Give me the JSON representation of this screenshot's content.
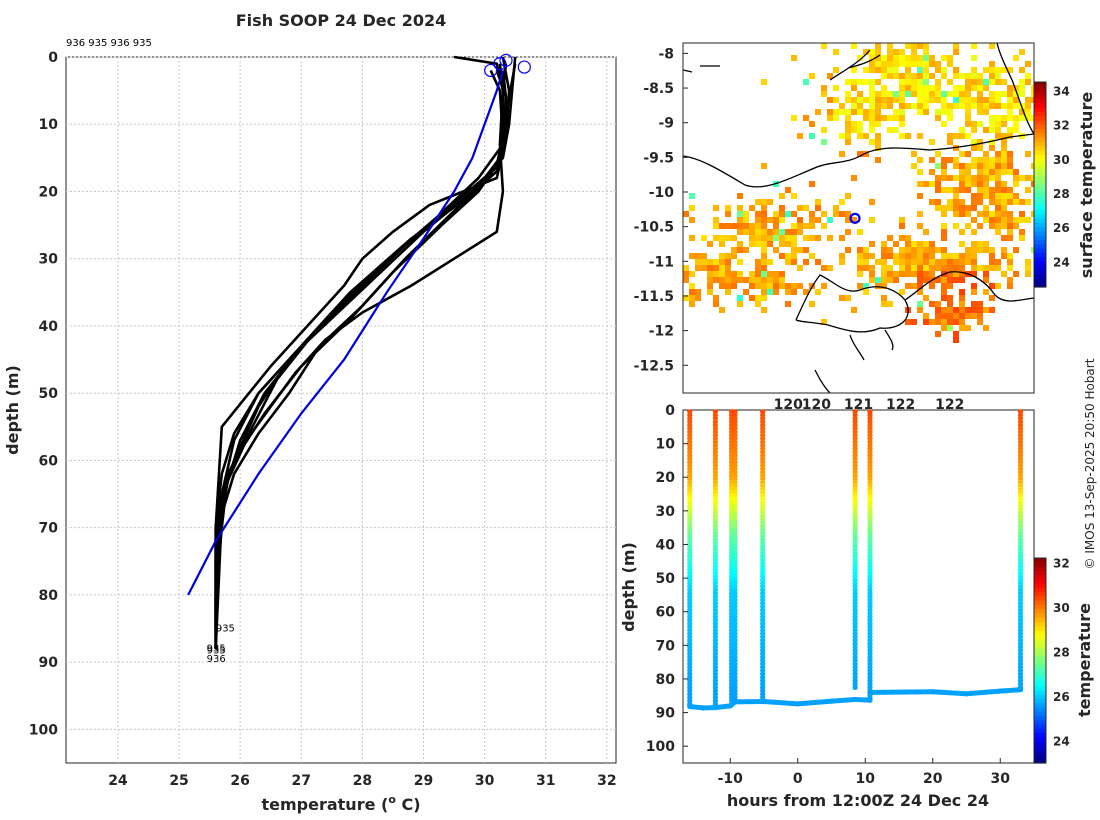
{
  "title": "Fish SOOP 24 Dec 2024",
  "credit": "© IMOS 13-Sep-2025 20:50 Hobart",
  "colors": {
    "profile": "#000000",
    "climatology": "#0000dd",
    "marker": "#0000ff",
    "coast": "#000000",
    "grid": "#c8c8c8"
  },
  "chart_data": [
    {
      "type": "line",
      "name": "profiles",
      "xlabel": "temperature (",
      "xlabel_sup": "o",
      "xlabel_end": " C)",
      "ylabel": "depth (m)",
      "xlim": [
        23.15,
        32.15
      ],
      "ylim": [
        105,
        0
      ],
      "xticks": [
        24,
        25,
        26,
        27,
        28,
        29,
        30,
        31,
        32
      ],
      "yticks": [
        0,
        10,
        20,
        30,
        40,
        50,
        60,
        70,
        80,
        90,
        100
      ],
      "top_ids": "936 935 936 935",
      "bottom_ids": [
        {
          "text": "935",
          "t": 25.7,
          "d": 85
        },
        {
          "text": "935",
          "t": 25.55,
          "d": 88
        },
        {
          "text": "935",
          "t": 25.55,
          "d": 88.3
        },
        {
          "text": "936",
          "t": 25.55,
          "d": 89.5
        }
      ],
      "surface_markers": [
        [
          30.1,
          2
        ],
        [
          30.25,
          1
        ],
        [
          30.35,
          0.5
        ],
        [
          30.65,
          1.5
        ]
      ],
      "series": [
        {
          "name": "profile-1",
          "t": [
            29.5,
            30.2,
            30.3,
            30.3,
            30.25,
            30.0,
            29.2,
            28.2,
            27.3,
            26.6,
            26.2,
            25.8,
            25.7,
            25.6,
            25.6
          ],
          "d": [
            0,
            1,
            5,
            12,
            15,
            18,
            24,
            32,
            40,
            48,
            55,
            62,
            70,
            80,
            88
          ]
        },
        {
          "name": "profile-2",
          "t": [
            30.35,
            30.3,
            30.3,
            30.2,
            29.7,
            28.8,
            27.8,
            27.0,
            26.3,
            25.9,
            25.7,
            25.6,
            25.6
          ],
          "d": [
            1,
            5,
            12,
            17,
            21,
            27,
            35,
            43,
            50,
            57,
            65,
            75,
            87
          ]
        },
        {
          "name": "profile-3",
          "t": [
            30.1,
            30.25,
            30.3,
            30.2,
            29.9,
            29.3,
            28.5,
            27.8,
            27.0,
            26.4,
            25.9,
            25.7,
            25.65,
            25.6
          ],
          "d": [
            2,
            5,
            12,
            16,
            20,
            25,
            32,
            39,
            46,
            53,
            60,
            66,
            75,
            88
          ]
        },
        {
          "name": "profile-4",
          "t": [
            30.3,
            30.4,
            30.35,
            30.2,
            29.6,
            28.7,
            28.0,
            27.3,
            26.8,
            26.3,
            25.9,
            25.7,
            25.6
          ],
          "d": [
            0,
            5,
            12,
            17,
            22,
            30,
            37,
            43,
            50,
            56,
            62,
            68,
            88
          ]
        },
        {
          "name": "profile-5",
          "t": [
            30.5,
            30.4,
            30.3,
            29.9,
            29.2,
            28.3,
            27.5,
            26.8,
            26.3,
            26.0,
            25.7,
            25.6,
            25.6
          ],
          "d": [
            1,
            6,
            13,
            18,
            24,
            31,
            38,
            45,
            52,
            58,
            65,
            72,
            85
          ]
        },
        {
          "name": "profile-6",
          "t": [
            30.3,
            30.35,
            30.3,
            30.2,
            29.1,
            28.5,
            28.0,
            27.7,
            27.2,
            26.5,
            25.7,
            25.6,
            25.6
          ],
          "d": [
            2,
            6,
            14,
            18,
            22,
            26,
            30,
            34,
            39,
            46,
            55,
            70,
            88
          ]
        },
        {
          "name": "profile-7",
          "t": [
            30.25,
            30.3,
            30.25,
            30.3,
            30.2,
            29.5,
            28.8,
            28.0,
            27.4,
            26.9,
            26.5,
            26.1,
            25.8,
            25.65,
            25.6
          ],
          "d": [
            1,
            5,
            13,
            20,
            26,
            30,
            34,
            38,
            42,
            47,
            52,
            57,
            63,
            70,
            85
          ]
        },
        {
          "name": "profile-8",
          "t": [
            30.5,
            30.45,
            30.4,
            30.3,
            29.8,
            29.0,
            28.3,
            27.6,
            26.9,
            26.3,
            25.9,
            25.7,
            25.6,
            25.6
          ],
          "d": [
            0,
            5,
            10,
            15,
            20,
            26,
            32,
            38,
            44,
            50,
            56,
            62,
            70,
            88
          ]
        },
        {
          "name": "profile-9",
          "t": [
            30.2,
            30.35,
            30.3,
            30.25,
            29.6,
            28.7,
            27.9,
            27.1,
            26.4,
            26.0,
            25.8,
            25.65,
            25.6
          ],
          "d": [
            2,
            6,
            12,
            16,
            21,
            28,
            35,
            42,
            50,
            57,
            63,
            70,
            87
          ]
        }
      ],
      "climatology": {
        "name": "climatology",
        "t": [
          30.3,
          30.2,
          30.0,
          29.8,
          29.5,
          29.0,
          28.4,
          27.7,
          27.0,
          26.3,
          25.6,
          25.15
        ],
        "d": [
          2,
          5,
          10,
          15,
          20,
          27,
          35,
          45,
          53,
          62,
          72,
          80
        ]
      }
    },
    {
      "type": "heatmap",
      "name": "sst-map",
      "colorbar_label": "surface temperature",
      "colorbar_range": [
        22.5,
        34.5
      ],
      "colorbar_ticks": [
        24,
        26,
        28,
        30,
        32,
        34
      ],
      "xlim": [
        118.5,
        123.5
      ],
      "ylim": [
        -12.9,
        -7.85
      ],
      "xtick_labels": [
        "120",
        "120",
        "121",
        "122",
        "122"
      ],
      "yticks": [
        -8,
        -8.5,
        -9,
        -9.5,
        -10,
        -10.5,
        -11,
        -11.5,
        -12,
        -12.5
      ],
      "ship_marker": [
        120.95,
        -10.38
      ]
    },
    {
      "type": "scatter",
      "name": "depth-time-section",
      "xlabel": "hours from 12:00Z 24 Dec 24",
      "ylabel": "depth (m)",
      "colorbar_label": "temperature",
      "colorbar_range": [
        23,
        32.2
      ],
      "colorbar_ticks": [
        24,
        26,
        28,
        30,
        32
      ],
      "xlim": [
        -17,
        35
      ],
      "ylim": [
        105,
        0
      ],
      "xticks": [
        -10,
        0,
        10,
        20,
        30
      ],
      "yticks": [
        0,
        10,
        20,
        30,
        40,
        50,
        60,
        70,
        80,
        90,
        100
      ],
      "casts_hours": [
        -16,
        -12.2,
        -9.8,
        -9.3,
        -5.2,
        8.5,
        10.7,
        33
      ],
      "cast_bottom_depth": [
        88.2,
        88.5,
        87.5,
        86.5,
        86.6,
        83.3,
        83.6,
        83.2
      ],
      "track": [
        [
          -16,
          88.2
        ],
        [
          -14,
          88.6
        ],
        [
          -12.2,
          88.5
        ],
        [
          -10,
          88.0
        ],
        [
          -9.3,
          86.8
        ],
        [
          -5,
          86.7
        ],
        [
          0,
          87.4
        ],
        [
          5,
          86.6
        ],
        [
          8.5,
          86.1
        ],
        [
          10.7,
          86.3
        ],
        [
          10.7,
          84.0
        ],
        [
          15,
          83.9
        ],
        [
          20,
          83.8
        ],
        [
          25,
          84.4
        ],
        [
          30,
          83.6
        ],
        [
          33,
          83.2
        ]
      ]
    }
  ]
}
